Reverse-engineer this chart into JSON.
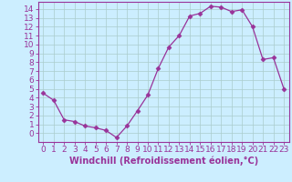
{
  "x": [
    0,
    1,
    2,
    3,
    4,
    5,
    6,
    7,
    8,
    9,
    10,
    11,
    12,
    13,
    14,
    15,
    16,
    17,
    18,
    19,
    20,
    21,
    22,
    23
  ],
  "y": [
    4.5,
    3.7,
    1.5,
    1.3,
    0.8,
    0.6,
    0.3,
    -0.5,
    0.8,
    2.5,
    4.3,
    7.3,
    9.7,
    11.0,
    13.2,
    13.5,
    14.3,
    14.2,
    13.7,
    13.9,
    12.0,
    8.3,
    8.5,
    5.0
  ],
  "line_color": "#993399",
  "marker": "D",
  "marker_size": 2.5,
  "bg_color": "#cceeff",
  "grid_color": "#aacccc",
  "xlabel": "Windchill (Refroidissement éolien,°C)",
  "xlabel_color": "#993399",
  "yticks": [
    0,
    1,
    2,
    3,
    4,
    5,
    6,
    7,
    8,
    9,
    10,
    11,
    12,
    13,
    14
  ],
  "ylim": [
    -1.0,
    14.8
  ],
  "xlim": [
    -0.5,
    23.5
  ],
  "tick_color": "#993399",
  "axis_color": "#993399",
  "font_size": 6.5,
  "xlabel_fontsize": 7.0
}
